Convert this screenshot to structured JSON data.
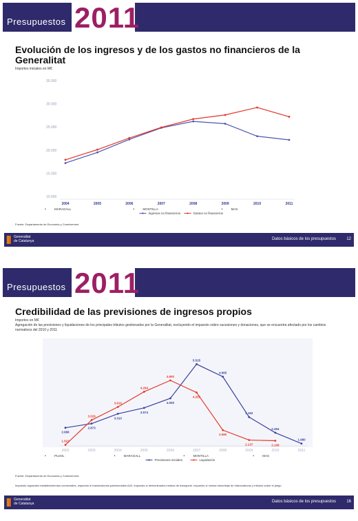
{
  "slide1": {
    "header": {
      "label": "Presupuestos",
      "year": "2011"
    },
    "title_line1": "Evolución de los ingresos y de los gastos no financieros de la",
    "title_line2": "Generalitat",
    "subtitle": "Importes iniciales en M€",
    "source": "Fuente: Departamento de Economia y Coneixement",
    "footer": {
      "org_line1": "Generalitat",
      "org_line2": "de Catalunya",
      "right": "Datos básicos de los presupuestos",
      "page": "12"
    },
    "chart_data": {
      "type": "line",
      "categories": [
        "2004",
        "2005",
        "2006",
        "2007",
        "2008",
        "2009",
        "2010",
        "2011"
      ],
      "yticks": [
        "35.000",
        "30.000",
        "25.000",
        "20.000",
        "15.000",
        "10.000"
      ],
      "ylim": [
        10000,
        35000
      ],
      "series": [
        {
          "name": "Ingresos no financieros",
          "color": "#4a55b0",
          "values": [
            17200,
            19500,
            22300,
            24800,
            26200,
            25700,
            23000,
            22200
          ]
        },
        {
          "name": "Gastos no financieros",
          "color": "#e0352b",
          "values": [
            17900,
            20100,
            22600,
            24900,
            26700,
            27600,
            29200,
            27200
          ]
        }
      ],
      "periods": [
        {
          "label": "MARAGALL",
          "marker": "•"
        },
        {
          "label": "MONTILLA",
          "marker": "•"
        },
        {
          "label": "MAS",
          "marker": "•"
        }
      ],
      "legend_placement": "bottom"
    }
  },
  "slide2": {
    "header": {
      "label": "Presupuestos",
      "year": "2011"
    },
    "title": "Credibilidad de las previsiones de ingresos propios",
    "subtitle": "Importes en M€",
    "note": "Agregación de las previsiones y liquidaciones de los principales tributos gestionados por la Generalitat, excluyendo el impuesto sobre sucesiones y donaciones, que se encuentra afectado por los cambios normativos del 2010 y 2011",
    "source": "Fuente: Departamento de Economia y Coneixement.",
    "note2": "Impuesto s/grandes establecimientos comerciales, impuesto s/ transmisiones patrimoniales AJD, impuesto s/ determinados medios de transporte, impuesto s/ ventas minoristas de hidrocarburos y tributos sobre el juego",
    "footer": {
      "org_line1": "Generalitat",
      "org_line2": "de Catalunya",
      "right": "Datos básicos de los presupuestos",
      "page": "16"
    },
    "chart_data": {
      "type": "line",
      "categories": [
        "2002",
        "2003",
        "2004",
        "2005",
        "2006",
        "2007",
        "2008",
        "2009",
        "2010",
        "2011"
      ],
      "ylim": [
        2000,
        6000
      ],
      "series": [
        {
          "name": "Previsiones iniciales",
          "color": "#3a3f9e",
          "values": [
            2686,
            2873,
            3310,
            3574,
            4000,
            5525,
            4965,
            3162,
            2464,
            1980
          ],
          "labels": [
            "2.686",
            "2.873",
            "3.310",
            "3.574",
            "4.000",
            "5.525",
            "4.965",
            "3.162",
            "2.464",
            "1.980"
          ]
        },
        {
          "name": "Liquidación",
          "color": "#e63a2a",
          "values": [
            1922,
            3029,
            3616,
            4294,
            4800,
            4259,
            2580,
            2137,
            2108,
            null
          ],
          "labels": [
            "1.922",
            "3.029",
            "3.616",
            "4.294",
            "4.800",
            "4.259",
            "2.580",
            "2.137",
            "2.108",
            ""
          ]
        }
      ],
      "periods": [
        {
          "label": "PUJOL",
          "marker": "•"
        },
        {
          "label": "MARAGALL",
          "marker": "•"
        },
        {
          "label": "MONTILLA",
          "marker": "•"
        },
        {
          "label": "MAS",
          "marker": "•"
        }
      ],
      "legend_placement": "bottom"
    }
  }
}
